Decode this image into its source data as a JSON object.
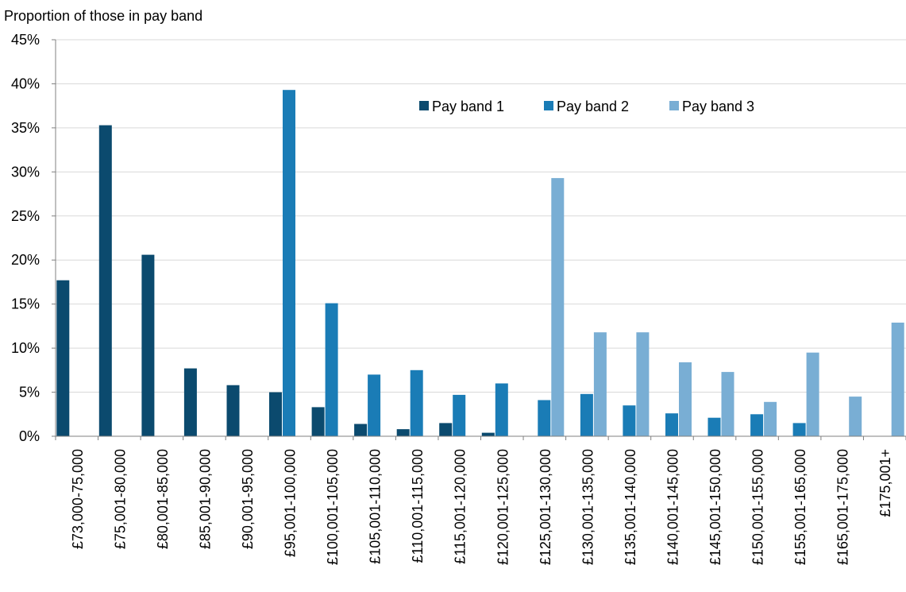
{
  "chart_data": {
    "type": "bar",
    "title": "",
    "xlabel": "",
    "ylabel": "Proportion of those in pay band",
    "ylim": [
      0,
      45
    ],
    "y_ticks": [
      "0%",
      "5%",
      "10%",
      "15%",
      "20%",
      "25%",
      "30%",
      "35%",
      "40%",
      "45%"
    ],
    "grid": "horizontal",
    "legend_position": "top-right",
    "categories": [
      "£73,000-75,000",
      "£75,001-80,000",
      "£80,001-85,000",
      "£85,001-90,000",
      "£90,001-95,000",
      "£95,001-100,000",
      "£100,001-105,000",
      "£105,001-110,000",
      "£110,001-115,000",
      "£115,001-120,000",
      "£120,001-125,000",
      "£125,001-130,000",
      "£130,001-135,000",
      "£135,001-140,000",
      "£140,001-145,000",
      "£145,001-150,000",
      "£150,001-155,000",
      "£155,001-165,000",
      "£165,001-175,000",
      "£175,001+"
    ],
    "series": [
      {
        "name": "Pay band 1",
        "color": "#0b4a6e",
        "values": [
          17.7,
          35.3,
          20.6,
          7.7,
          5.8,
          5.0,
          3.3,
          1.4,
          0.8,
          1.5,
          0.4,
          0,
          0,
          0,
          0,
          0,
          0,
          0,
          0,
          0
        ]
      },
      {
        "name": "Pay band 2",
        "color": "#1a7cb6",
        "values": [
          0,
          0,
          0,
          0,
          0,
          39.3,
          15.1,
          7.0,
          7.5,
          4.7,
          6.0,
          4.1,
          4.8,
          3.5,
          2.6,
          2.1,
          2.5,
          1.5,
          0,
          0
        ]
      },
      {
        "name": "Pay band 3",
        "color": "#79aed4",
        "values": [
          0,
          0,
          0,
          0,
          0,
          0,
          0,
          0,
          0,
          0,
          0,
          29.3,
          11.8,
          11.8,
          8.4,
          7.3,
          3.9,
          9.5,
          4.5,
          12.9
        ]
      }
    ]
  }
}
